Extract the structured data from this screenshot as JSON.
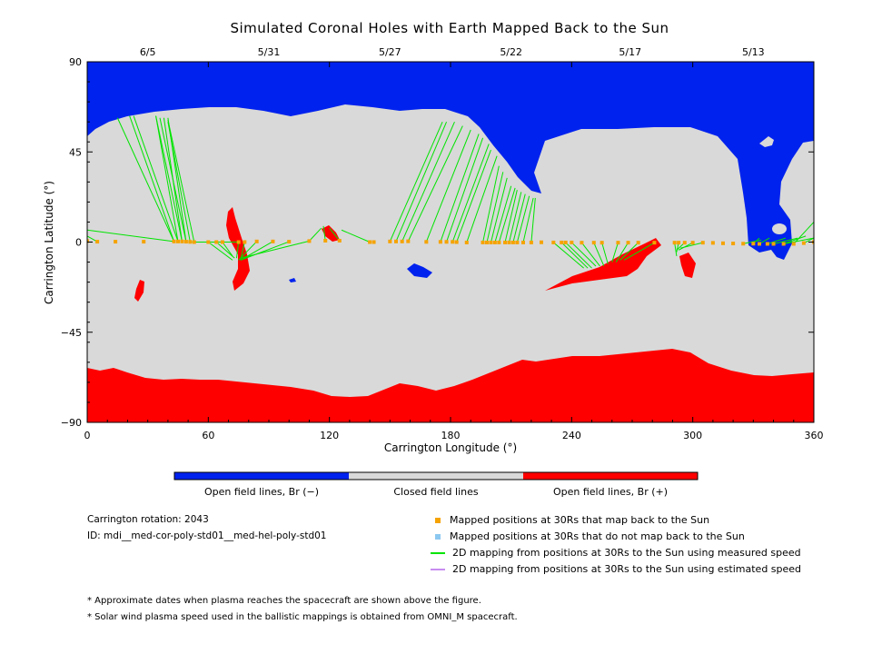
{
  "chart_data": {
    "type": "map",
    "title": "Simulated Coronal Holes with Earth Mapped Back to the Sun",
    "xlabel": "Carrington Longitude (°)",
    "ylabel": "Carrington Latitude (°)",
    "xlim": [
      0,
      360
    ],
    "ylim": [
      -90,
      90
    ],
    "x_ticks": [
      "0",
      "60",
      "120",
      "180",
      "240",
      "300",
      "360"
    ],
    "y_ticks": [
      "90",
      "45",
      "0",
      "−45",
      "−90"
    ],
    "date_ticks": [
      {
        "label": "6/5",
        "lon": 30
      },
      {
        "label": "5/31",
        "lon": 90
      },
      {
        "label": "5/27",
        "lon": 150
      },
      {
        "label": "5/22",
        "lon": 210
      },
      {
        "label": "5/17",
        "lon": 269
      },
      {
        "label": "5/13",
        "lon": 330
      }
    ],
    "colorbar": [
      {
        "label": "Open field lines, Br (−)",
        "color": "#0022ee"
      },
      {
        "label": "Closed field lines",
        "color": "#d9d9d9"
      },
      {
        "label": "Open field lines, Br (+)",
        "color": "#ff0000"
      }
    ],
    "colors": {
      "negative": "#0022ee",
      "closed": "#d9d9d9",
      "positive": "#ff0000",
      "mapped": "#f5a300",
      "unmapped": "#8cc8f0",
      "measured": "#00e400",
      "estimated": "#c78cf0"
    },
    "mappings": [
      {
        "lon": 0,
        "lat": 0.5,
        "sun": [
          [
            0,
            10
          ]
        ]
      },
      {
        "lon": 5,
        "lat": 0.2,
        "sun": [
          [
            0,
            3
          ]
        ]
      },
      {
        "lon": 14,
        "lat": 0.2
      },
      {
        "lon": 28,
        "lat": 0.2
      },
      {
        "lon": 43,
        "lat": 0.3,
        "sun": [
          [
            15,
            62
          ],
          [
            21,
            63
          ],
          [
            0,
            6
          ]
        ]
      },
      {
        "lon": 45,
        "lat": 0.3,
        "sun": [
          [
            23,
            63
          ],
          [
            34,
            63
          ]
        ]
      },
      {
        "lon": 47,
        "lat": 0.3,
        "sun": [
          [
            34,
            63
          ],
          [
            38,
            62
          ]
        ]
      },
      {
        "lon": 49,
        "lat": 0.2,
        "sun": [
          [
            36,
            62
          ],
          [
            40,
            62
          ]
        ]
      },
      {
        "lon": 51,
        "lat": 0.1,
        "sun": [
          [
            40,
            60
          ]
        ]
      },
      {
        "lon": 53,
        "lat": 0.0,
        "sun": [
          [
            40,
            61
          ]
        ]
      },
      {
        "lon": 60,
        "lat": 0.0,
        "sun": [
          [
            72,
            -9
          ]
        ]
      },
      {
        "lon": 64,
        "lat": 0.0,
        "sun": [
          [
            73,
            -8
          ]
        ]
      },
      {
        "lon": 67,
        "lat": 0.0,
        "sun": [
          [
            72,
            -7
          ]
        ]
      },
      {
        "lon": 75,
        "lat": 0.0,
        "sun": [
          [
            74,
            -8
          ],
          [
            52,
            0
          ]
        ]
      },
      {
        "lon": 78,
        "lat": 0.0,
        "sun": [
          [
            76,
            -9
          ]
        ]
      },
      {
        "lon": 84,
        "lat": 0.3,
        "sun": [
          [
            75,
            -9
          ]
        ]
      },
      {
        "lon": 92,
        "lat": 0.3,
        "sun": [
          [
            76,
            -9
          ]
        ]
      },
      {
        "lon": 100,
        "lat": 0.2,
        "sun": [
          [
            76,
            -9
          ]
        ]
      },
      {
        "lon": 110,
        "lat": 0.5,
        "sun": [
          [
            116,
            7
          ],
          [
            76,
            -8
          ]
        ]
      },
      {
        "lon": 118,
        "lat": 0.7,
        "sun": [
          [
            117,
            8
          ]
        ]
      },
      {
        "lon": 125,
        "lat": 0.7,
        "sun": [
          [
            120,
            7
          ]
        ]
      },
      {
        "lon": 140,
        "lat": 0.0,
        "sun": [
          [
            126,
            6
          ]
        ]
      },
      {
        "lon": 142,
        "lat": 0.0
      },
      {
        "lon": 150,
        "lat": 0.3,
        "sun": [
          [
            176,
            60
          ]
        ]
      },
      {
        "lon": 153,
        "lat": 0.3,
        "sun": [
          [
            178,
            60
          ]
        ]
      },
      {
        "lon": 156,
        "lat": 0.3,
        "sun": [
          [
            182,
            60
          ]
        ]
      },
      {
        "lon": 159,
        "lat": 0.4,
        "sun": [
          [
            186,
            58
          ]
        ]
      },
      {
        "lon": 168,
        "lat": 0.1,
        "sun": [
          [
            190,
            56
          ]
        ]
      },
      {
        "lon": 175,
        "lat": 0.1,
        "sun": [
          [
            194,
            54
          ]
        ]
      },
      {
        "lon": 178,
        "lat": 0.1,
        "sun": [
          [
            196,
            52
          ]
        ]
      },
      {
        "lon": 181,
        "lat": 0.1,
        "sun": [
          [
            199,
            49
          ]
        ]
      },
      {
        "lon": 183,
        "lat": 0.0,
        "sun": [
          [
            200,
            46
          ]
        ]
      },
      {
        "lon": 188,
        "lat": -0.2,
        "sun": [
          [
            203,
            43
          ]
        ]
      },
      {
        "lon": 196,
        "lat": -0.2,
        "sun": [
          [
            204,
            38
          ]
        ]
      },
      {
        "lon": 198,
        "lat": -0.2,
        "sun": [
          [
            206,
            35
          ]
        ]
      },
      {
        "lon": 200,
        "lat": -0.2,
        "sun": [
          [
            208,
            32
          ]
        ]
      },
      {
        "lon": 202,
        "lat": -0.2,
        "sun": [
          [
            210,
            28
          ]
        ]
      },
      {
        "lon": 204,
        "lat": -0.2,
        "sun": [
          [
            212,
            27
          ]
        ]
      },
      {
        "lon": 207,
        "lat": -0.2,
        "sun": [
          [
            213,
            26
          ]
        ]
      },
      {
        "lon": 209,
        "lat": -0.2,
        "sun": [
          [
            215,
            25
          ]
        ]
      },
      {
        "lon": 211,
        "lat": -0.2,
        "sun": [
          [
            217,
            24
          ]
        ]
      },
      {
        "lon": 213,
        "lat": -0.2,
        "sun": [
          [
            219,
            23
          ]
        ]
      },
      {
        "lon": 216,
        "lat": -0.2,
        "sun": [
          [
            221,
            22
          ]
        ]
      },
      {
        "lon": 220,
        "lat": -0.2,
        "sun": [
          [
            222,
            22
          ]
        ]
      },
      {
        "lon": 225,
        "lat": -0.1
      },
      {
        "lon": 231,
        "lat": -0.2,
        "sun": [
          [
            246,
            -13
          ]
        ]
      },
      {
        "lon": 235,
        "lat": -0.2,
        "sun": [
          [
            248,
            -13
          ]
        ]
      },
      {
        "lon": 237,
        "lat": -0.2,
        "sun": [
          [
            250,
            -13
          ]
        ]
      },
      {
        "lon": 240,
        "lat": -0.2,
        "sun": [
          [
            252,
            -12
          ]
        ]
      },
      {
        "lon": 245,
        "lat": -0.3,
        "sun": [
          [
            254,
            -12
          ]
        ]
      },
      {
        "lon": 251,
        "lat": -0.3,
        "sun": [
          [
            256,
            -12
          ]
        ]
      },
      {
        "lon": 255,
        "lat": -0.3,
        "sun": [
          [
            258,
            -11
          ]
        ]
      },
      {
        "lon": 263,
        "lat": -0.3,
        "sun": [
          [
            260,
            -10
          ]
        ]
      },
      {
        "lon": 268,
        "lat": -0.3,
        "sun": [
          [
            262,
            -10
          ]
        ]
      },
      {
        "lon": 273,
        "lat": -0.3,
        "sun": [
          [
            264,
            -9
          ]
        ]
      },
      {
        "lon": 281,
        "lat": -0.3,
        "sun": [
          [
            266,
            -9
          ]
        ]
      },
      {
        "lon": 291,
        "lat": -0.3,
        "sun": [
          [
            292,
            -7
          ]
        ]
      },
      {
        "lon": 293,
        "lat": -0.3,
        "sun": [
          [
            292,
            -5
          ]
        ]
      },
      {
        "lon": 296,
        "lat": -0.3,
        "sun": [
          [
            292,
            -4
          ]
        ]
      },
      {
        "lon": 300,
        "lat": -0.3,
        "sun": [
          [
            293,
            -4
          ]
        ]
      },
      {
        "lon": 305,
        "lat": -0.3,
        "sun": [
          [
            294,
            -3
          ]
        ]
      },
      {
        "lon": 310,
        "lat": -0.4
      },
      {
        "lon": 315,
        "lat": -0.6
      },
      {
        "lon": 320,
        "lat": -0.7
      },
      {
        "lon": 325,
        "lat": -0.8,
        "sun": [
          [
            334,
            1
          ]
        ]
      },
      {
        "lon": 330,
        "lat": -0.8,
        "sun": [
          [
            333,
            2
          ]
        ]
      },
      {
        "lon": 333,
        "lat": -0.9,
        "sun": [
          [
            338,
            2
          ]
        ]
      },
      {
        "lon": 337,
        "lat": -0.9,
        "sun": [
          [
            346,
            2
          ]
        ]
      },
      {
        "lon": 340,
        "lat": -0.9,
        "sun": [
          [
            352,
            2
          ]
        ]
      },
      {
        "lon": 345,
        "lat": -0.9,
        "sun": [
          [
            356,
            3
          ],
          [
            360,
            2
          ]
        ]
      },
      {
        "lon": 350,
        "lat": -0.9,
        "sun": [
          [
            360,
            10
          ]
        ]
      },
      {
        "lon": 355,
        "lat": -0.5,
        "sun": [
          [
            360,
            2
          ]
        ]
      },
      {
        "lon": 360,
        "lat": 0.0
      }
    ]
  },
  "info": {
    "rotation": "Carrington rotation: 2043",
    "id": "ID: mdi__med-cor-poly-std01__med-hel-poly-std01"
  },
  "legend": [
    "Mapped positions at 30Rs that map back to the Sun",
    "Mapped positions at 30Rs that do not map back to the Sun",
    "2D mapping from positions at 30Rs to the Sun using measured speed",
    "2D mapping from positions at 30Rs to the Sun using estimated speed"
  ],
  "footnotes": [
    "* Approximate dates when plasma reaches the spacecraft are shown above the figure.",
    "* Solar wind plasma speed used in the ballistic mappings is obtained from OMNI_M spacecraft."
  ]
}
